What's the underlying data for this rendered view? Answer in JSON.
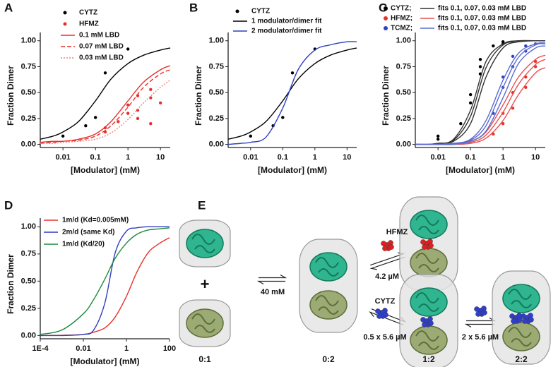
{
  "chart_data": [
    {
      "panel": "A",
      "type": "line",
      "xscale": "log",
      "xlabel": "[Modulator] (mM)",
      "ylabel": "Fraction Dimer",
      "xlim": [
        0.002,
        20
      ],
      "ylim": [
        -0.03,
        1.08
      ],
      "xticks": [
        0.01,
        0.1,
        1,
        10
      ],
      "yticks": [
        {
          "value": 0,
          "label": "0.00"
        },
        {
          "value": 0.25,
          "label": "0.25"
        },
        {
          "value": 0.5,
          "label": "0.50"
        },
        {
          "value": 0.75,
          "label": "0.75"
        },
        {
          "value": 1,
          "label": "1.00"
        }
      ],
      "series": [
        {
          "name": "CYTZ",
          "kind": "scatter",
          "color": "#000000",
          "x": [
            0.01,
            0.05,
            0.1,
            0.2,
            1
          ],
          "values": [
            0.08,
            0.18,
            0.26,
            0.69,
            0.92
          ]
        },
        {
          "name": "HFMZ",
          "kind": "scatter",
          "color": "#e8302a",
          "x": [
            0.2,
            0.2,
            0.5,
            1,
            1,
            2,
            2,
            2,
            5,
            5,
            5,
            10
          ],
          "values": [
            0.12,
            0.16,
            0.22,
            0.3,
            0.38,
            0.47,
            0.33,
            0.25,
            0.53,
            0.45,
            0.2,
            0.4
          ]
        },
        {
          "name": "0.1 mM LBD",
          "kind": "line",
          "dash": "solid",
          "color": "#e8302a",
          "x": [
            0.002,
            0.005,
            0.01,
            0.03,
            0.1,
            0.3,
            1,
            3,
            10,
            20
          ],
          "values": [
            0.02,
            0.03,
            0.03,
            0.05,
            0.1,
            0.22,
            0.42,
            0.6,
            0.72,
            0.76
          ]
        },
        {
          "name": "0.07 mM LBD",
          "kind": "line",
          "dash": "dashed",
          "color": "#e8302a",
          "x": [
            0.002,
            0.005,
            0.01,
            0.03,
            0.1,
            0.3,
            1,
            3,
            10,
            20
          ],
          "values": [
            0.01,
            0.02,
            0.03,
            0.04,
            0.08,
            0.18,
            0.36,
            0.55,
            0.68,
            0.72
          ]
        },
        {
          "name": "0.03 mM LBD",
          "kind": "line",
          "dash": "dotted",
          "color": "#f08080",
          "x": [
            0.002,
            0.005,
            0.01,
            0.03,
            0.1,
            0.3,
            1,
            3,
            10,
            20
          ],
          "values": [
            0.01,
            0.01,
            0.02,
            0.03,
            0.05,
            0.11,
            0.24,
            0.4,
            0.55,
            0.62
          ]
        },
        {
          "kind": "line",
          "dash": "solid",
          "color": "#000000",
          "x": [
            0.002,
            0.005,
            0.01,
            0.03,
            0.1,
            0.3,
            1,
            3,
            10,
            20
          ],
          "values": [
            0.05,
            0.08,
            0.12,
            0.22,
            0.42,
            0.63,
            0.78,
            0.86,
            0.91,
            0.93
          ]
        }
      ]
    },
    {
      "panel": "B",
      "type": "line",
      "xscale": "log",
      "xlabel": "[Modulator] (mM)",
      "ylabel": "Fraction Dimer",
      "xlim": [
        0.002,
        20
      ],
      "ylim": [
        -0.03,
        1.08
      ],
      "xticks": [
        0.01,
        0.1,
        1,
        10
      ],
      "yticks": [
        {
          "value": 0,
          "label": "0.00"
        },
        {
          "value": 0.25,
          "label": "0.25"
        },
        {
          "value": 0.5,
          "label": "0.50"
        },
        {
          "value": 0.75,
          "label": "0.75"
        },
        {
          "value": 1,
          "label": "1.00"
        }
      ],
      "series": [
        {
          "name": "CYTZ",
          "kind": "scatter",
          "color": "#000000",
          "x": [
            0.01,
            0.05,
            0.1,
            0.2,
            1
          ],
          "values": [
            0.08,
            0.18,
            0.26,
            0.69,
            0.92
          ]
        },
        {
          "name": "1 modulator/dimer fit",
          "kind": "line",
          "dash": "solid",
          "color": "#000000",
          "x": [
            0.002,
            0.005,
            0.01,
            0.03,
            0.1,
            0.3,
            1,
            3,
            10,
            20
          ],
          "values": [
            0.05,
            0.08,
            0.12,
            0.22,
            0.42,
            0.63,
            0.78,
            0.86,
            0.91,
            0.93
          ]
        },
        {
          "name": "2 modulator/dimer fit",
          "kind": "line",
          "dash": "solid",
          "color": "#2f3fbf",
          "x": [
            0.002,
            0.005,
            0.01,
            0.03,
            0.1,
            0.3,
            1,
            3,
            10,
            20
          ],
          "values": [
            0.0,
            0.01,
            0.02,
            0.07,
            0.35,
            0.72,
            0.91,
            0.96,
            0.99,
            0.99
          ]
        }
      ]
    },
    {
      "panel": "C",
      "type": "line",
      "xscale": "log",
      "xlabel": "[Modulator] (mM)",
      "ylabel": "Fraction Dimer",
      "xlim": [
        0.002,
        20
      ],
      "ylim": [
        -0.03,
        1.08
      ],
      "xticks": [
        0.01,
        0.1,
        1,
        10
      ],
      "yticks": [
        {
          "value": 0,
          "label": "0.00"
        },
        {
          "value": 0.25,
          "label": "0.25"
        },
        {
          "value": 0.5,
          "label": "0.50"
        },
        {
          "value": 0.75,
          "label": "0.75"
        },
        {
          "value": 1,
          "label": "1.00"
        }
      ],
      "series": [
        {
          "name": "CYTZ;",
          "kind": "scatter",
          "color": "#000000",
          "x": [
            0.01,
            0.01,
            0.05,
            0.1,
            0.1,
            0.2,
            0.2,
            0.2,
            0.5,
            1,
            1
          ],
          "values": [
            0.05,
            0.08,
            0.2,
            0.4,
            0.48,
            0.75,
            0.82,
            0.68,
            0.95,
            0.97,
            0.99
          ]
        },
        {
          "name": "fits 0.1, 0.07, 0.03 mM LBD",
          "kind": "line",
          "dash": "solid",
          "color": "#333333",
          "x": [
            0.002,
            0.005,
            0.01,
            0.03,
            0.1,
            0.3,
            1,
            3,
            10,
            20
          ],
          "values": [
            0,
            0,
            0.01,
            0.05,
            0.33,
            0.8,
            0.97,
            1,
            1,
            1
          ]
        },
        {
          "kind": "line",
          "dash": "solid",
          "color": "#333333",
          "x": [
            0.002,
            0.005,
            0.01,
            0.03,
            0.1,
            0.3,
            1,
            3,
            10,
            20
          ],
          "values": [
            0,
            0,
            0.01,
            0.04,
            0.27,
            0.74,
            0.96,
            0.99,
            1,
            1
          ]
        },
        {
          "kind": "line",
          "dash": "solid",
          "color": "#333333",
          "x": [
            0.002,
            0.005,
            0.01,
            0.03,
            0.1,
            0.3,
            1,
            3,
            10,
            20
          ],
          "values": [
            0,
            0,
            0.01,
            0.03,
            0.2,
            0.65,
            0.93,
            0.99,
            1,
            1
          ]
        },
        {
          "name": "HFMZ;",
          "kind": "scatter",
          "color": "#e8302a",
          "x": [
            0.5,
            1,
            1,
            2,
            2,
            5,
            5,
            10,
            10
          ],
          "values": [
            0.1,
            0.2,
            0.3,
            0.35,
            0.5,
            0.55,
            0.65,
            0.75,
            0.8
          ]
        },
        {
          "name": "fits 0.1, 0.07, 0.03 mM LBD",
          "kind": "line",
          "dash": "solid",
          "color": "#e85050",
          "x": [
            0.002,
            0.005,
            0.01,
            0.03,
            0.1,
            0.3,
            1,
            3,
            10,
            20
          ],
          "values": [
            0,
            0,
            0,
            0.01,
            0.03,
            0.12,
            0.38,
            0.65,
            0.82,
            0.86
          ]
        },
        {
          "kind": "line",
          "dash": "solid",
          "color": "#e85050",
          "x": [
            0.002,
            0.005,
            0.01,
            0.03,
            0.1,
            0.3,
            1,
            3,
            10,
            20
          ],
          "values": [
            0,
            0,
            0,
            0.01,
            0.02,
            0.09,
            0.31,
            0.58,
            0.77,
            0.82
          ]
        },
        {
          "kind": "line",
          "dash": "solid",
          "color": "#e85050",
          "x": [
            0.002,
            0.005,
            0.01,
            0.03,
            0.1,
            0.3,
            1,
            3,
            10,
            20
          ],
          "values": [
            0,
            0,
            0,
            0,
            0.01,
            0.06,
            0.23,
            0.48,
            0.69,
            0.74
          ]
        },
        {
          "name": "TCMZ;",
          "kind": "scatter",
          "color": "#2f3fbf",
          "x": [
            0.5,
            1,
            1,
            2,
            2,
            5,
            5,
            10
          ],
          "values": [
            0.3,
            0.55,
            0.65,
            0.75,
            0.85,
            0.9,
            0.95,
            0.97
          ]
        },
        {
          "name": "fits 0.1, 0.07, 0.03 mM LBD",
          "kind": "line",
          "dash": "solid",
          "color": "#5a6cd0",
          "x": [
            0.002,
            0.005,
            0.01,
            0.03,
            0.1,
            0.3,
            1,
            3,
            10,
            20
          ],
          "values": [
            0,
            0,
            0,
            0.01,
            0.05,
            0.23,
            0.62,
            0.88,
            0.97,
            0.98
          ]
        },
        {
          "kind": "line",
          "dash": "solid",
          "color": "#5a6cd0",
          "x": [
            0.002,
            0.005,
            0.01,
            0.03,
            0.1,
            0.3,
            1,
            3,
            10,
            20
          ],
          "values": [
            0,
            0,
            0,
            0.01,
            0.04,
            0.18,
            0.55,
            0.84,
            0.96,
            0.97
          ]
        },
        {
          "kind": "line",
          "dash": "solid",
          "color": "#5a6cd0",
          "x": [
            0.002,
            0.005,
            0.01,
            0.03,
            0.1,
            0.3,
            1,
            3,
            10,
            20
          ],
          "values": [
            0,
            0,
            0,
            0,
            0.03,
            0.13,
            0.45,
            0.78,
            0.93,
            0.95
          ]
        }
      ]
    },
    {
      "panel": "D",
      "type": "line",
      "xscale": "log",
      "xlabel": "[Modulator] (mM)",
      "ylabel": "Fraction Dimer",
      "xlim": [
        0.0001,
        100
      ],
      "ylim": [
        -0.03,
        1.08
      ],
      "xticks": [
        {
          "value": 0.0001,
          "label": "1E-4"
        },
        0.01,
        1,
        100
      ],
      "yticks": [
        {
          "value": 0,
          "label": "0.00"
        },
        {
          "value": 0.25,
          "label": "0.25"
        },
        {
          "value": 0.5,
          "label": "0.50"
        },
        {
          "value": 0.75,
          "label": "0.75"
        },
        {
          "value": 1,
          "label": "1.00"
        }
      ],
      "series": [
        {
          "name": "1m/d (Kd=0.005mM)",
          "kind": "line",
          "dash": "solid",
          "color": "#e8302a",
          "x": [
            0.0001,
            0.001,
            0.01,
            0.03,
            0.1,
            0.3,
            1,
            3,
            10,
            30,
            100
          ],
          "values": [
            0,
            0.002,
            0.01,
            0.03,
            0.07,
            0.17,
            0.36,
            0.58,
            0.76,
            0.84,
            0.9
          ]
        },
        {
          "name": "2m/d (same Kd)",
          "kind": "line",
          "dash": "solid",
          "color": "#2f3fbf",
          "x": [
            0.0001,
            0.001,
            0.01,
            0.03,
            0.1,
            0.3,
            1,
            3,
            10,
            30,
            100
          ],
          "values": [
            0,
            0,
            0.01,
            0.05,
            0.3,
            0.76,
            0.96,
            0.99,
            1,
            1,
            1
          ]
        },
        {
          "name": "1m/d (Kd/20)",
          "kind": "line",
          "dash": "solid",
          "color": "#1a8a3a",
          "x": [
            0.0001,
            0.001,
            0.01,
            0.03,
            0.1,
            0.3,
            1,
            3,
            10,
            30,
            100
          ],
          "values": [
            0.01,
            0.05,
            0.2,
            0.33,
            0.52,
            0.71,
            0.85,
            0.93,
            0.97,
            0.98,
            0.99
          ]
        }
      ]
    }
  ],
  "diagram": {
    "panel": "E",
    "plus": "+",
    "dimerization": "40 mM",
    "hfmz": {
      "name": "HFMZ",
      "kd": "4.2 µM"
    },
    "cytz": {
      "name": "CYTZ",
      "kd": "0.5 x 5.6 µM"
    },
    "second": "2 x 5.6 µM",
    "states": [
      "0:1",
      "0:2",
      "1:2",
      "2:2"
    ]
  }
}
